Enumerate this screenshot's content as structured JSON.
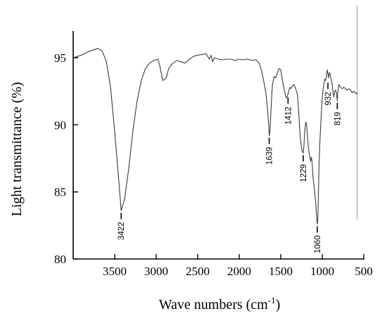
{
  "chart_data": {
    "type": "line",
    "xlabel": "Wave numbers (cm",
    "xlabel_sup": "-1",
    "xlabel_tail": ")",
    "ylabel": "Light transmittance (%)",
    "x_reversed": true,
    "xlim": [
      4000,
      500
    ],
    "ylim": [
      80,
      97
    ],
    "x_ticks": [
      3500,
      3000,
      2500,
      2000,
      1500,
      1000,
      500
    ],
    "x_tick_labels": [
      "3500",
      "3000",
      "2500",
      "2000",
      "1500",
      "1000",
      "500"
    ],
    "y_ticks": [
      80,
      85,
      90,
      95
    ],
    "y_tick_labels": [
      "80",
      "85",
      "90",
      "95"
    ],
    "grid": false,
    "legend": "none",
    "reference_line_x": 580,
    "line_color": "#3a3a3a",
    "series": [
      {
        "x": [
          4000,
          3900,
          3800,
          3750,
          3700,
          3650,
          3600,
          3550,
          3500,
          3450,
          3422,
          3380,
          3330,
          3280,
          3230,
          3180,
          3130,
          3080,
          3030,
          2980,
          2960,
          2920,
          2880,
          2850,
          2800,
          2750,
          2700,
          2650,
          2600,
          2550,
          2500,
          2450,
          2400,
          2380,
          2360,
          2340,
          2320,
          2300,
          2250,
          2200,
          2150,
          2100,
          2050,
          2000,
          1950,
          1900,
          1850,
          1800,
          1760,
          1730,
          1700,
          1680,
          1660,
          1645,
          1639,
          1630,
          1620,
          1610,
          1600,
          1580,
          1560,
          1540,
          1520,
          1500,
          1480,
          1460,
          1440,
          1430,
          1412,
          1400,
          1390,
          1380,
          1360,
          1340,
          1320,
          1300,
          1290,
          1280,
          1270,
          1260,
          1250,
          1240,
          1229,
          1220,
          1210,
          1200,
          1190,
          1180,
          1170,
          1160,
          1150,
          1140,
          1130,
          1120,
          1110,
          1100,
          1090,
          1080,
          1070,
          1060,
          1055,
          1050,
          1045,
          1040,
          1030,
          1020,
          1010,
          1000,
          990,
          980,
          970,
          960,
          950,
          940,
          932,
          925,
          920,
          910,
          900,
          890,
          880,
          870,
          860,
          850,
          840,
          830,
          819,
          810,
          800,
          790,
          780,
          760,
          740,
          720,
          700,
          680,
          660,
          640,
          620,
          600,
          590,
          580
        ],
        "y": [
          95.0,
          95.2,
          95.5,
          95.6,
          95.7,
          95.5,
          94.7,
          92.8,
          89.5,
          85.8,
          83.6,
          84.5,
          86.8,
          89.6,
          91.8,
          93.3,
          94.2,
          94.6,
          94.8,
          94.9,
          94.5,
          93.3,
          93.5,
          94.2,
          94.6,
          94.8,
          94.7,
          94.6,
          94.9,
          95.1,
          95.2,
          95.25,
          95.3,
          95.1,
          94.9,
          95.2,
          94.7,
          95.0,
          94.9,
          94.85,
          94.9,
          94.9,
          94.8,
          94.9,
          94.85,
          94.9,
          94.8,
          94.85,
          94.6,
          94.0,
          93.1,
          92.4,
          91.2,
          90.0,
          89.2,
          89.5,
          90.7,
          92.0,
          93.0,
          93.6,
          93.5,
          93.9,
          94.2,
          94.1,
          93.3,
          92.7,
          92.1,
          92.0,
          92.3,
          92.6,
          92.8,
          92.7,
          92.9,
          93.0,
          92.7,
          92.3,
          91.5,
          90.5,
          89.5,
          88.8,
          88.3,
          88.0,
          87.9,
          88.5,
          89.6,
          90.2,
          90.1,
          89.3,
          88.5,
          88.0,
          87.6,
          87.3,
          87.6,
          87.0,
          86.0,
          85.5,
          84.8,
          84.3,
          83.3,
          82.6,
          82.8,
          83.8,
          85.2,
          86.8,
          88.6,
          89.8,
          91.0,
          92.0,
          92.7,
          93.1,
          93.4,
          93.3,
          93.6,
          94.1,
          93.9,
          93.5,
          93.7,
          93.9,
          93.6,
          93.3,
          93.0,
          92.4,
          92.1,
          92.5,
          92.6,
          92.4,
          91.8,
          92.6,
          93.0,
          92.9,
          92.8,
          92.7,
          92.8,
          92.7,
          92.6,
          92.7,
          92.6,
          92.4,
          92.5,
          92.4,
          92.3,
          92.4
        ],
        "peak_labels": [
          {
            "text": "3422",
            "x": 3422,
            "y": 83.6
          },
          {
            "text": "1639",
            "x": 1639,
            "y": 89.2
          },
          {
            "text": "1412",
            "x": 1412,
            "y": 92.2
          },
          {
            "text": "1229",
            "x": 1229,
            "y": 87.9
          },
          {
            "text": "1060",
            "x": 1060,
            "y": 82.6
          },
          {
            "text": "932",
            "x": 932,
            "y": 93.3
          },
          {
            "text": "819",
            "x": 819,
            "y": 91.8
          }
        ]
      }
    ]
  }
}
